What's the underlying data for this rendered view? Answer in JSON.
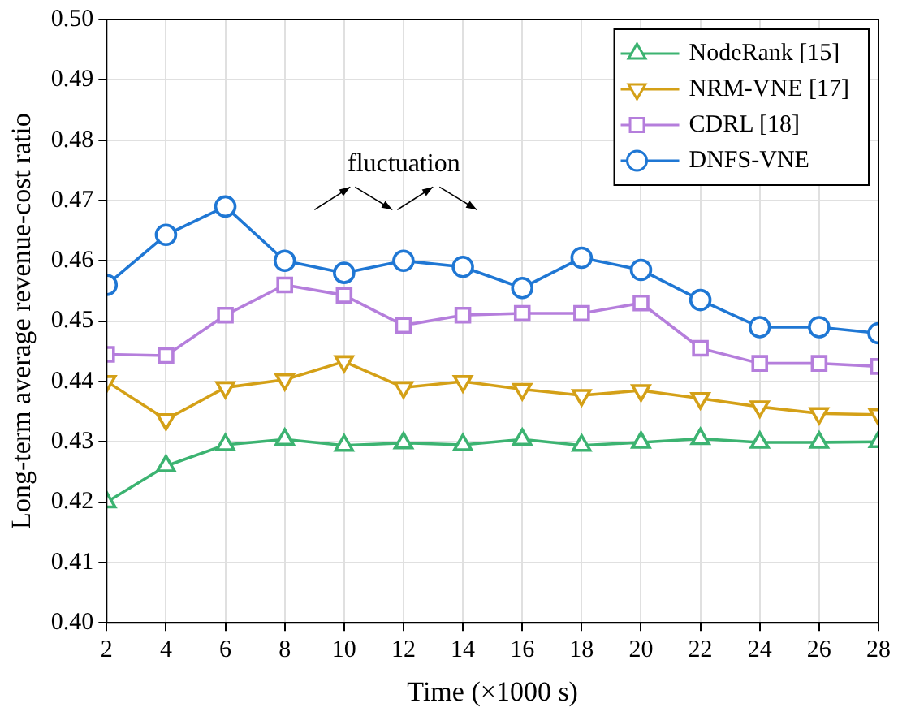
{
  "chart_data": {
    "type": "line",
    "xlabel": "Time (×1000 s)",
    "ylabel": "Long-term average revenue-cost ratio",
    "x": [
      2,
      4,
      6,
      8,
      10,
      12,
      14,
      16,
      18,
      20,
      22,
      24,
      26,
      28
    ],
    "xlim": [
      2,
      28
    ],
    "xticks": [
      2,
      4,
      6,
      8,
      10,
      12,
      14,
      16,
      18,
      20,
      22,
      24,
      26,
      28
    ],
    "ylim": [
      0.4,
      0.5
    ],
    "yticks": [
      {
        "value": 0.4,
        "label": "0.40"
      },
      {
        "value": 0.41,
        "label": "0.41"
      },
      {
        "value": 0.42,
        "label": "0.42"
      },
      {
        "value": 0.43,
        "label": "0.43"
      },
      {
        "value": 0.44,
        "label": "0.44"
      },
      {
        "value": 0.45,
        "label": "0.45"
      },
      {
        "value": 0.46,
        "label": "0.46"
      },
      {
        "value": 0.47,
        "label": "0.47"
      },
      {
        "value": 0.48,
        "label": "0.48"
      },
      {
        "value": 0.49,
        "label": "0.49"
      },
      {
        "value": 0.5,
        "label": "0.50"
      }
    ],
    "grid": true,
    "legend": "top right",
    "series": [
      {
        "name": "NodeRank [15]",
        "color": "#3cb371",
        "marker": "triangle",
        "values": [
          0.42,
          0.426,
          0.4295,
          0.4304,
          0.4294,
          0.4298,
          0.4295,
          0.4304,
          0.4294,
          0.4299,
          0.4305,
          0.4299,
          0.4299,
          0.43
        ]
      },
      {
        "name": "NRM-VNE [17]",
        "color": "#d4a017",
        "marker": "triangle-down",
        "values": [
          0.44,
          0.4337,
          0.439,
          0.4403,
          0.4433,
          0.439,
          0.44,
          0.4387,
          0.4377,
          0.4385,
          0.4372,
          0.4358,
          0.4347,
          0.4345
        ]
      },
      {
        "name": "CDRL [18]",
        "color": "#b57edc",
        "marker": "square",
        "values": [
          0.4445,
          0.4443,
          0.451,
          0.456,
          0.4543,
          0.4493,
          0.451,
          0.4513,
          0.4513,
          0.453,
          0.4455,
          0.443,
          0.443,
          0.4425
        ]
      },
      {
        "name": "DNFS-VNE",
        "color": "#1f77d4",
        "marker": "circle",
        "values": [
          0.456,
          0.4643,
          0.469,
          0.46,
          0.458,
          0.46,
          0.459,
          0.4555,
          0.4605,
          0.4585,
          0.4535,
          0.449,
          0.449,
          0.448
        ]
      }
    ],
    "annotations": [
      "fluctuation"
    ]
  }
}
